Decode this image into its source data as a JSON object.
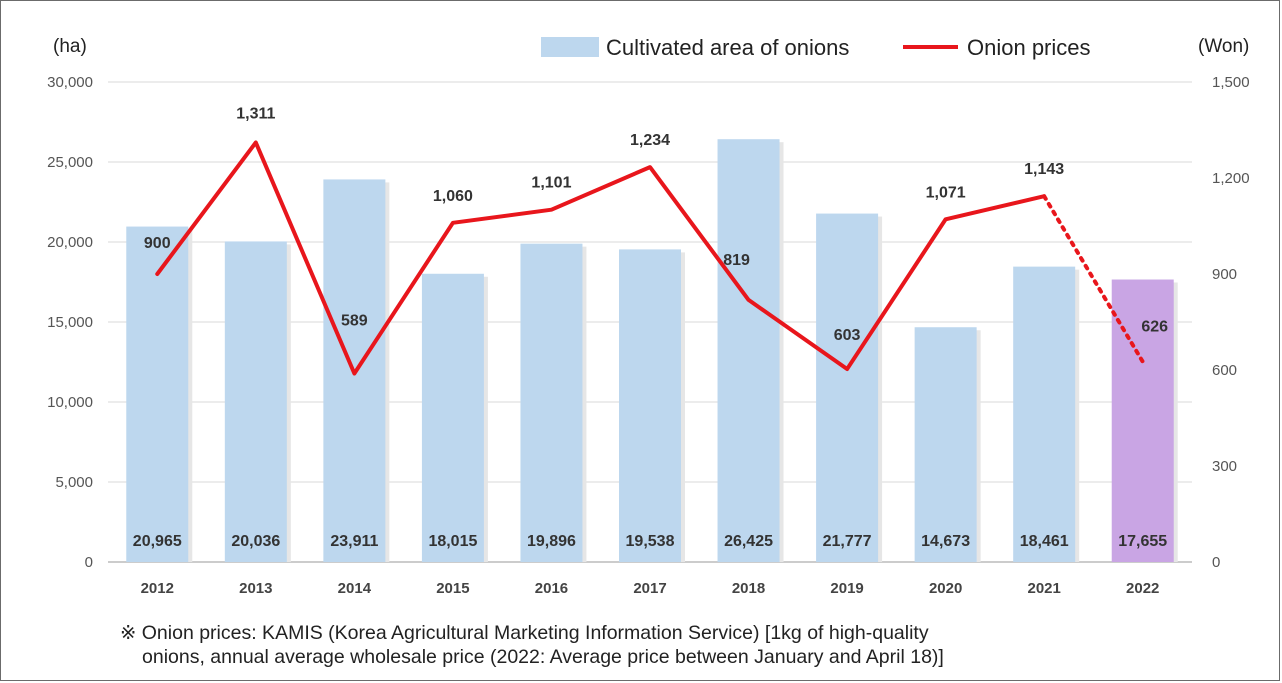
{
  "chart_data": {
    "type": "bar",
    "categories": [
      "2012",
      "2013",
      "2014",
      "2015",
      "2016",
      "2017",
      "2018",
      "2019",
      "2020",
      "2021",
      "2022"
    ],
    "series": [
      {
        "name": "Cultivated area of onions",
        "type": "bar",
        "axis": "left",
        "values": [
          20965,
          20036,
          23911,
          18015,
          19896,
          19538,
          26425,
          21777,
          14673,
          18461,
          17655
        ],
        "labels": [
          "20,965",
          "20,036",
          "23,911",
          "18,015",
          "19,896",
          "19,538",
          "26,425",
          "21,777",
          "14,673",
          "18,461",
          "17,655"
        ],
        "color": "#bdd7ee",
        "highlight_color": "#c9a5e4",
        "highlight_category": "2022"
      },
      {
        "name": "Onion prices",
        "type": "line",
        "axis": "right",
        "values": [
          900,
          1311,
          589,
          1060,
          1101,
          1234,
          819,
          603,
          1071,
          1143,
          626
        ],
        "labels": [
          "900",
          "1,311",
          "589",
          "1,060",
          "1,101",
          "1,234",
          "819",
          "603",
          "1,071",
          "1,143",
          "626"
        ],
        "color": "#e8161c",
        "dotted_last_segment": true
      }
    ],
    "left_axis": {
      "unit_label": "(ha)",
      "ylim": [
        0,
        30000
      ],
      "ticks": [
        "0",
        "5,000",
        "10,000",
        "15,000",
        "20,000",
        "25,000",
        "30,000"
      ],
      "tick_values": [
        0,
        5000,
        10000,
        15000,
        20000,
        25000,
        30000
      ]
    },
    "right_axis": {
      "unit_label": "(Won)",
      "ylim": [
        0,
        1500
      ],
      "ticks": [
        "0",
        "300",
        "600",
        "900",
        "1,200",
        "1,500"
      ],
      "tick_values": [
        0,
        300,
        600,
        900,
        1200,
        1500
      ]
    },
    "grid": true,
    "legend_position": "top-right"
  },
  "note": {
    "line1": "※ Onion prices: KAMIS (Korea Agricultural Marketing Information Service) [1kg of high-quality",
    "line2": "onions, annual average wholesale price (2022: Average price between January and April 18)]"
  }
}
